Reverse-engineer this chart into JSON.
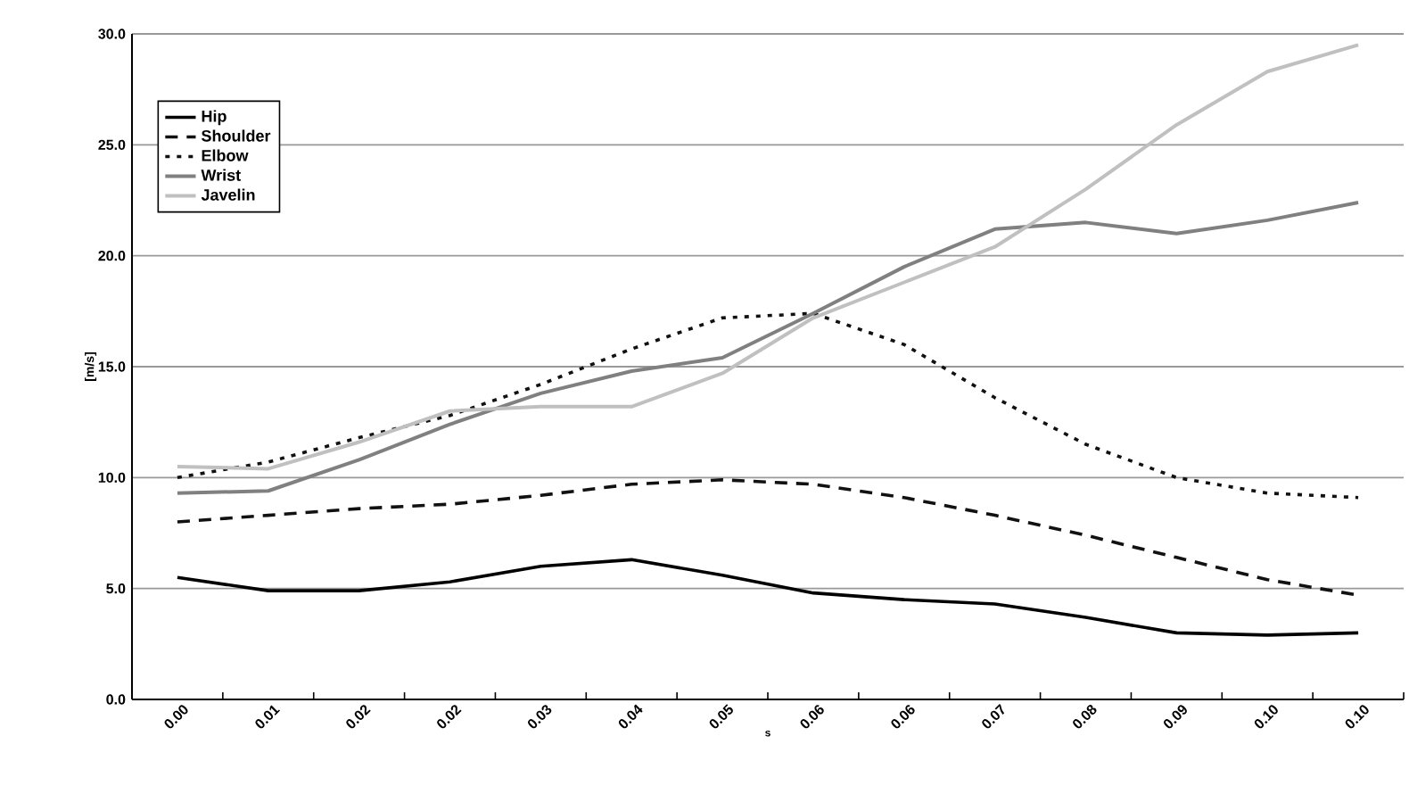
{
  "chart_data": {
    "type": "line",
    "xlabel": "s",
    "ylabel": "[m/s]",
    "categories": [
      "0.00",
      "0.01",
      "0.02",
      "0.02",
      "0.03",
      "0.04",
      "0.05",
      "0.06",
      "0.06",
      "0.07",
      "0.08",
      "0.09",
      "0.10",
      "0.10"
    ],
    "series": [
      {
        "name": "Hip",
        "color": "#000000",
        "line_style": "solid",
        "values": [
          5.5,
          4.9,
          4.9,
          5.3,
          6.0,
          6.3,
          5.6,
          4.8,
          4.5,
          4.3,
          3.7,
          3.0,
          2.9,
          3.0
        ]
      },
      {
        "name": "Shoulder",
        "color": "#111111",
        "line_style": "dashed",
        "values": [
          8.0,
          8.3,
          8.6,
          8.8,
          9.2,
          9.7,
          9.9,
          9.7,
          9.1,
          8.3,
          7.4,
          6.4,
          5.4,
          4.7
        ]
      },
      {
        "name": "Elbow",
        "color": "#111111",
        "line_style": "dotted",
        "values": [
          10.0,
          10.7,
          11.8,
          12.8,
          14.2,
          15.8,
          17.2,
          17.4,
          16.0,
          13.6,
          11.5,
          10.0,
          9.3,
          9.1
        ]
      },
      {
        "name": "Wrist",
        "color": "#808080",
        "line_style": "solid",
        "values": [
          9.3,
          9.4,
          10.8,
          12.4,
          13.8,
          14.8,
          15.4,
          17.4,
          19.5,
          21.2,
          21.5,
          21.0,
          21.6,
          22.4
        ]
      },
      {
        "name": "Javelin",
        "color": "#c0c0c0",
        "line_style": "solid",
        "values": [
          10.5,
          10.4,
          11.6,
          13.0,
          13.2,
          13.2,
          14.7,
          17.2,
          18.8,
          20.4,
          23.0,
          25.9,
          28.3,
          29.5
        ]
      }
    ],
    "ylim": [
      0,
      30
    ],
    "yticks": [
      {
        "value": 0,
        "label": "0.0"
      },
      {
        "value": 5,
        "label": "5.0"
      },
      {
        "value": 10,
        "label": "10.0"
      },
      {
        "value": 15,
        "label": "15.0"
      },
      {
        "value": 20,
        "label": "20.0"
      },
      {
        "value": 25,
        "label": "25.0"
      },
      {
        "value": 30,
        "label": "30.0"
      }
    ],
    "grid": "y",
    "legend": "top left",
    "marker": "none"
  }
}
